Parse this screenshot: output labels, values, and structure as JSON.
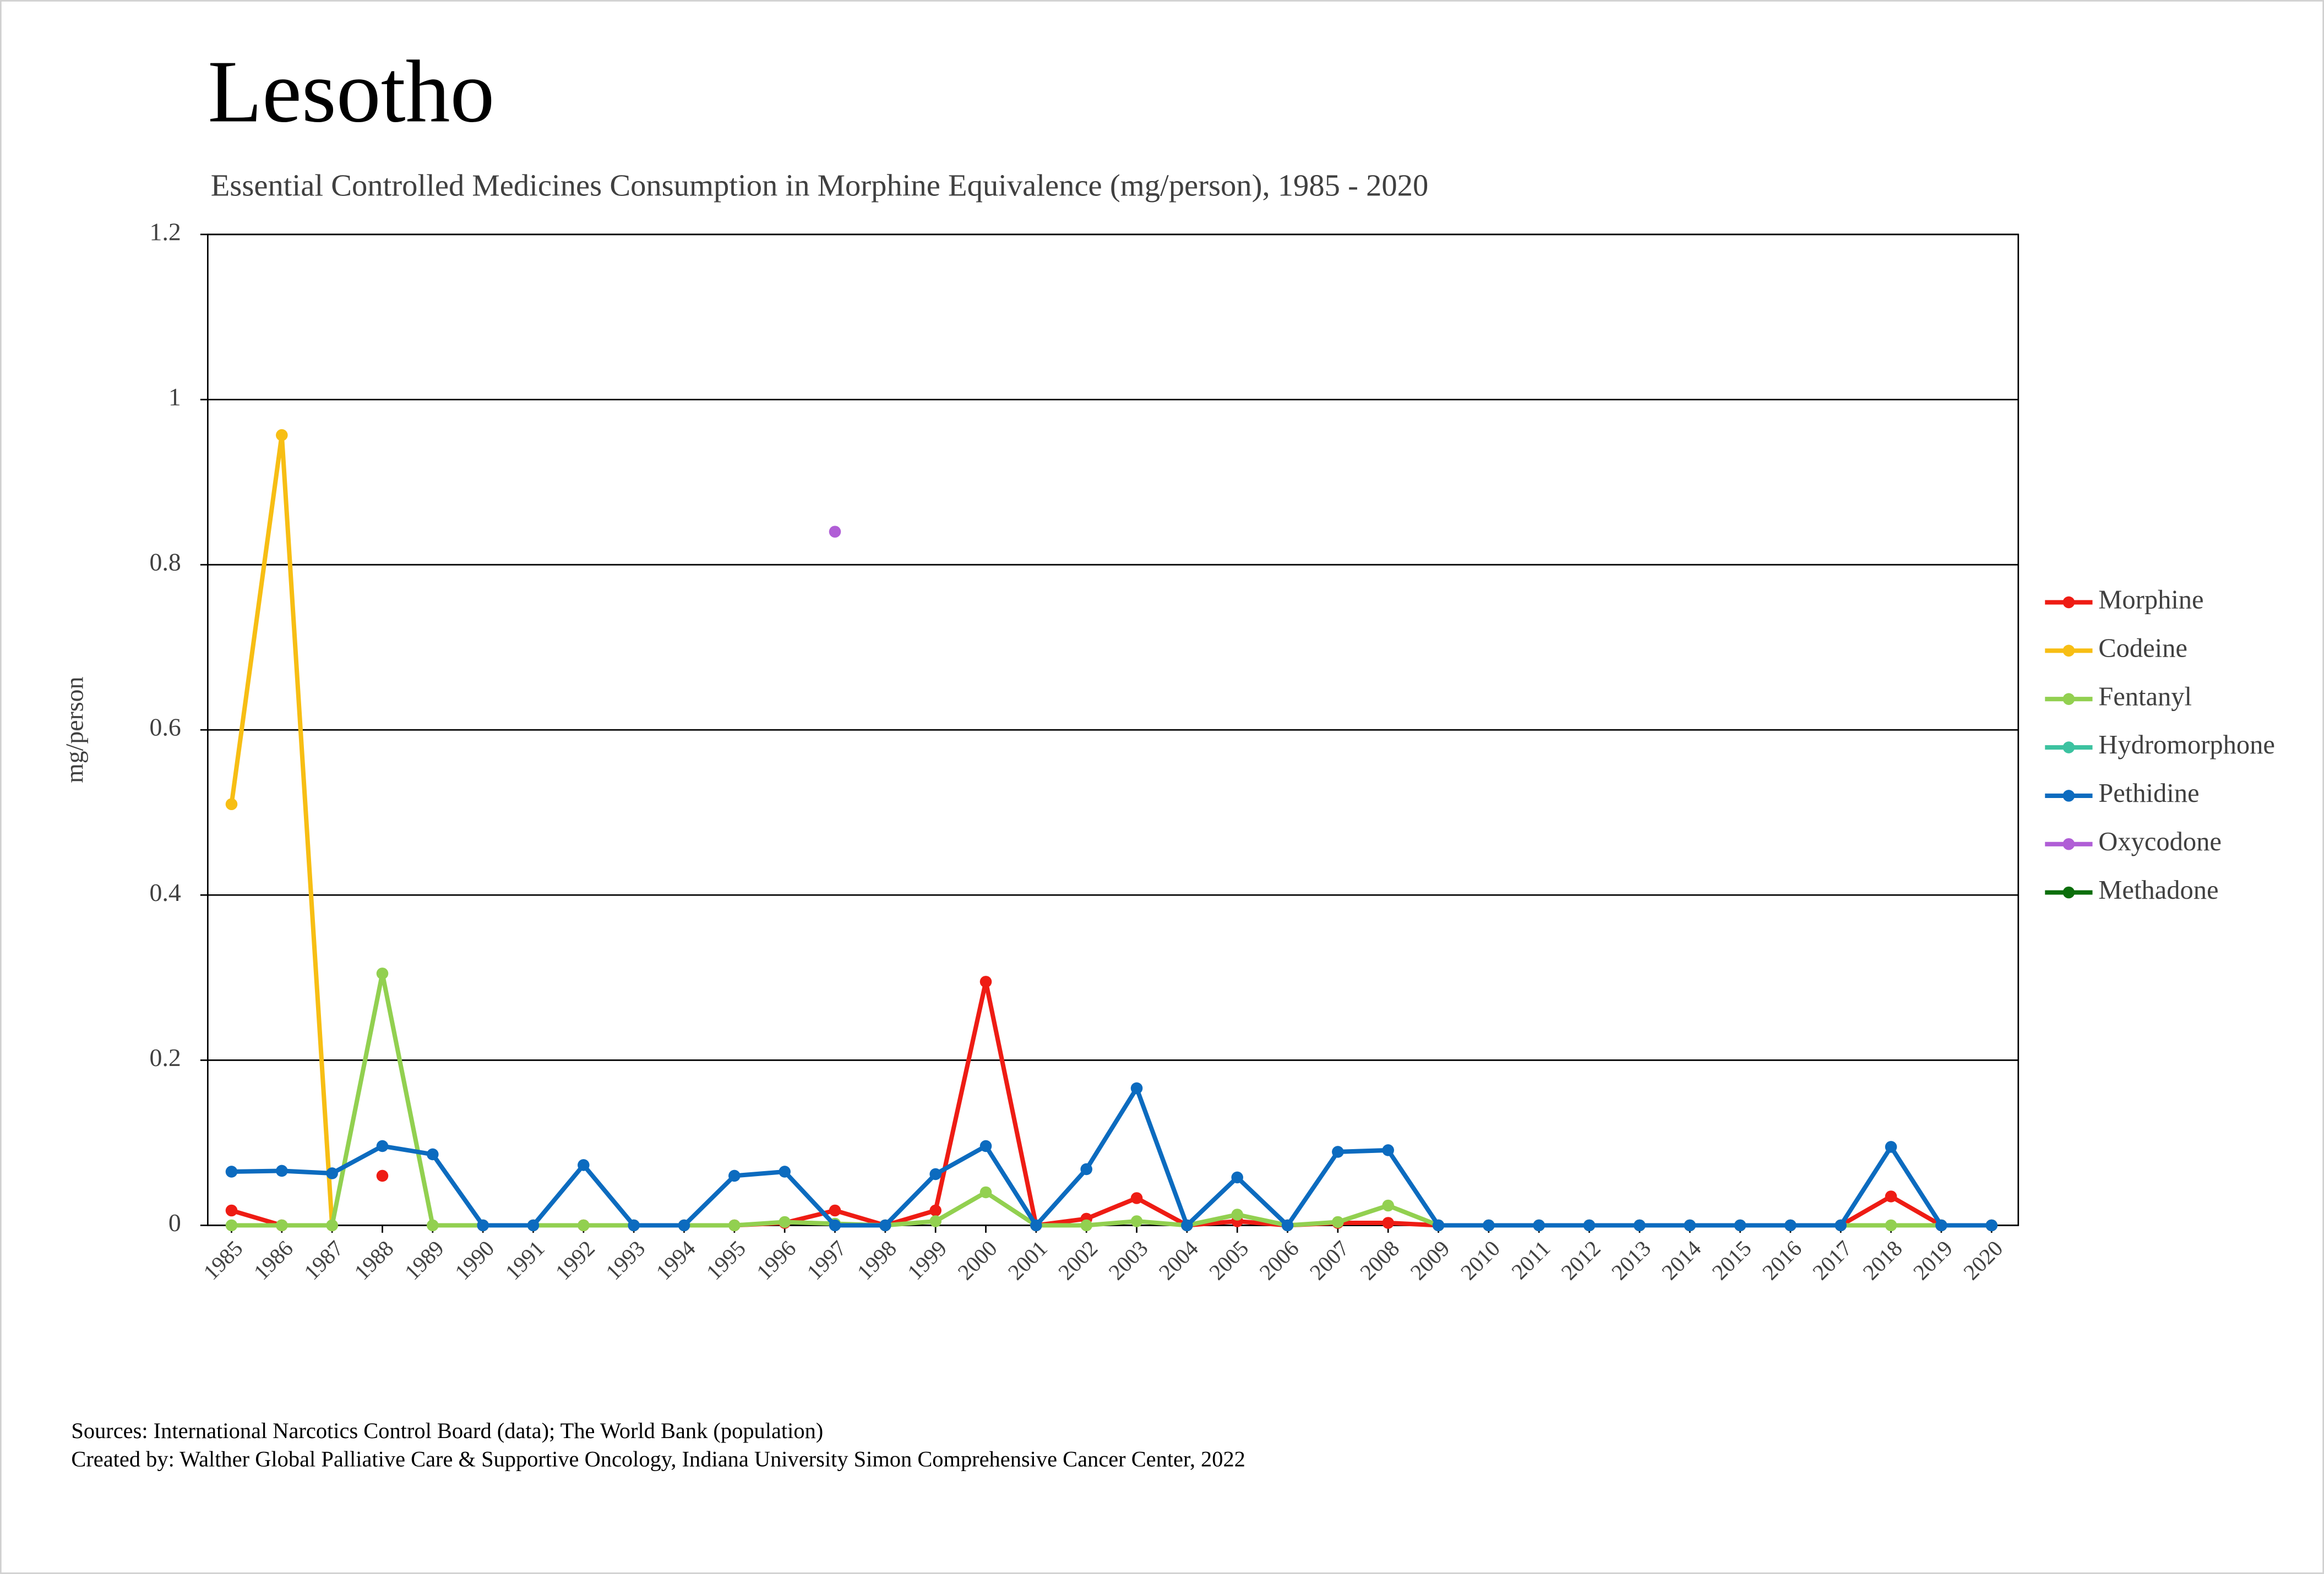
{
  "chart_data": {
    "type": "line",
    "title": "Lesotho",
    "subtitle": "Essential Controlled Medicines Consumption in Morphine Equivalence (mg/person), 1985 - 2020",
    "y_label": "mg/person",
    "sources": [
      "Sources: International Narcotics Control Board (data); The World Bank (population)",
      "Created by: Walther Global Palliative Care & Supportive Oncology, Indiana University Simon Comprehensive Cancer Center, 2022"
    ],
    "categories": [
      "1985",
      "1986",
      "1987",
      "1988",
      "1989",
      "1990",
      "1991",
      "1992",
      "1993",
      "1994",
      "1995",
      "1996",
      "1997",
      "1998",
      "1999",
      "2000",
      "2001",
      "2002",
      "2003",
      "2004",
      "2005",
      "2006",
      "2007",
      "2008",
      "2009",
      "2010",
      "2011",
      "2012",
      "2013",
      "2014",
      "2015",
      "2016",
      "2017",
      "2018",
      "2019",
      "2020"
    ],
    "ylim": [
      0,
      1.2
    ],
    "yticks": [
      0,
      0.2,
      0.4,
      0.6,
      0.8,
      1,
      1.2
    ],
    "grid": true,
    "series": [
      {
        "name": "Morphine",
        "color": "#ee1c14",
        "values": [
          0.018,
          0,
          null,
          0.06,
          null,
          0,
          0,
          0,
          0,
          0,
          0,
          0.003,
          0.018,
          0,
          0.018,
          0.295,
          0,
          0.008,
          0.033,
          0,
          0.005,
          0,
          0.003,
          0.003,
          0,
          0,
          0,
          0,
          0,
          0,
          0,
          0,
          0,
          0.035,
          0,
          0
        ]
      },
      {
        "name": "Codeine",
        "color": "#f7be14",
        "values": [
          0.51,
          0.957,
          0,
          null,
          null,
          null,
          null,
          null,
          null,
          null,
          null,
          null,
          null,
          null,
          null,
          null,
          null,
          null,
          null,
          null,
          null,
          null,
          null,
          null,
          null,
          null,
          null,
          null,
          null,
          null,
          null,
          null,
          null,
          null,
          null,
          null
        ]
      },
      {
        "name": "Fentanyl",
        "color": "#92d050",
        "values": [
          0,
          0,
          0,
          0.305,
          0,
          0,
          0,
          0,
          0,
          0,
          0,
          0.004,
          0.002,
          0,
          0.005,
          0.04,
          0,
          0,
          0.005,
          0,
          0.013,
          0,
          0.004,
          0.024,
          0,
          0,
          0,
          0,
          0,
          0,
          0,
          0,
          0,
          0,
          0,
          0
        ]
      },
      {
        "name": "Hydromorphone",
        "color": "#3cc2a0",
        "values": [
          null,
          null,
          null,
          null,
          null,
          null,
          null,
          null,
          null,
          null,
          null,
          null,
          null,
          null,
          null,
          null,
          null,
          null,
          null,
          null,
          null,
          null,
          null,
          null,
          null,
          null,
          null,
          null,
          null,
          null,
          null,
          null,
          null,
          null,
          null,
          null
        ]
      },
      {
        "name": "Pethidine",
        "color": "#0c6bbf",
        "values": [
          0.065,
          0.066,
          0.063,
          0.096,
          0.086,
          0,
          0,
          0.073,
          0,
          0,
          0.06,
          0.065,
          0,
          0,
          0.062,
          0.096,
          0,
          0.068,
          0.166,
          0,
          0.058,
          0,
          0.089,
          0.091,
          0,
          0,
          0,
          0,
          0,
          0,
          0,
          0,
          0,
          0.095,
          0,
          0
        ]
      },
      {
        "name": "Oxycodone",
        "color": "#b05ed6",
        "values": [
          null,
          null,
          null,
          null,
          null,
          null,
          null,
          null,
          null,
          null,
          null,
          null,
          0.84,
          null,
          null,
          null,
          null,
          null,
          null,
          null,
          null,
          null,
          null,
          null,
          null,
          null,
          null,
          null,
          null,
          null,
          null,
          null,
          null,
          null,
          null,
          null
        ]
      },
      {
        "name": "Methadone",
        "color": "#0b6e0b",
        "values": [
          null,
          null,
          null,
          null,
          null,
          null,
          null,
          null,
          null,
          null,
          null,
          null,
          null,
          null,
          null,
          null,
          null,
          null,
          null,
          null,
          null,
          null,
          null,
          null,
          null,
          null,
          null,
          null,
          null,
          null,
          null,
          null,
          null,
          null,
          null,
          null
        ]
      }
    ]
  }
}
